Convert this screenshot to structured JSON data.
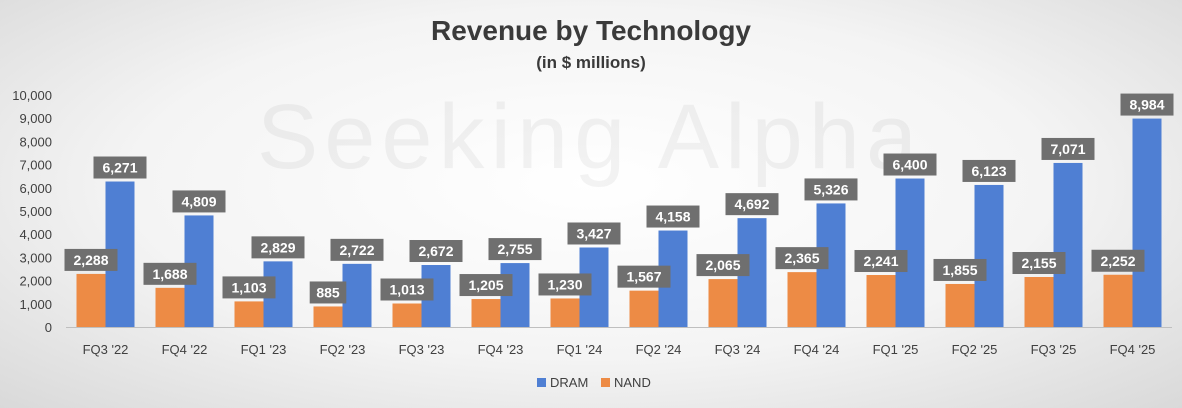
{
  "chart_data": {
    "type": "bar",
    "title": "Revenue by Technology",
    "subtitle": "(in $ millions)",
    "watermark": "Seeking Alpha",
    "categories": [
      "FQ3 '22",
      "FQ4 '22",
      "FQ1 '23",
      "FQ2 '23",
      "FQ3 '23",
      "FQ4 '23",
      "FQ1 '24",
      "FQ2 '24",
      "FQ3 '24",
      "FQ4 '24",
      "FQ1 '25",
      "FQ2 '25",
      "FQ3 '25",
      "FQ4 '25"
    ],
    "series": [
      {
        "name": "NAND",
        "color": "#ed8b45",
        "values": [
          2288,
          1688,
          1103,
          885,
          1013,
          1205,
          1230,
          1567,
          2065,
          2365,
          2241,
          1855,
          2155,
          2252
        ],
        "labels": [
          "2,288",
          "1,688",
          "1,103",
          "885",
          "1,013",
          "1,205",
          "1,230",
          "1,567",
          "2,065",
          "2,365",
          "2,241",
          "1,855",
          "2,155",
          "2,252"
        ]
      },
      {
        "name": "DRAM",
        "color": "#4f7fd3",
        "values": [
          6271,
          4809,
          2829,
          2722,
          2672,
          2755,
          3427,
          4158,
          4692,
          5326,
          6400,
          6123,
          7071,
          8984
        ],
        "labels": [
          "6,271",
          "4,809",
          "2,829",
          "2,722",
          "2,672",
          "2,755",
          "3,427",
          "4,158",
          "4,692",
          "5,326",
          "6,400",
          "6,123",
          "7,071",
          "8,984"
        ]
      }
    ],
    "legend_order": [
      "DRAM",
      "NAND"
    ],
    "legend_position": "bottom",
    "ylim": [
      0,
      10000
    ],
    "yticks": [
      0,
      1000,
      2000,
      3000,
      4000,
      5000,
      6000,
      7000,
      8000,
      9000,
      10000
    ],
    "ytick_labels": [
      "0",
      "1,000",
      "2,000",
      "3,000",
      "4,000",
      "5,000",
      "6,000",
      "7,000",
      "8,000",
      "9,000",
      "10,000"
    ],
    "grid": false,
    "xlabel": "",
    "ylabel": ""
  }
}
